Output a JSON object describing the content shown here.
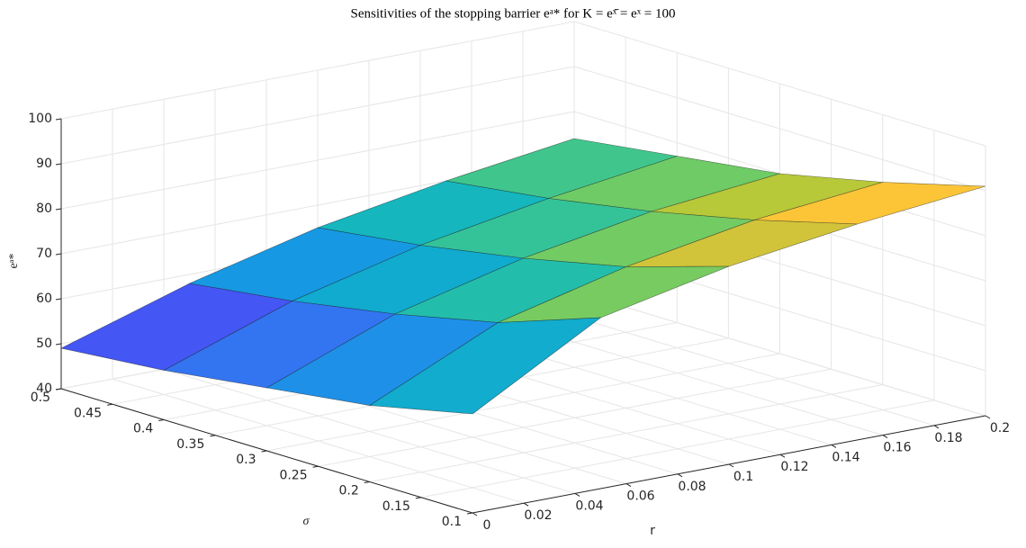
{
  "chart_data": {
    "type": "surface",
    "title": "Sensitivities of the stopping barrier eᵃ* for K = eˣ̄ = eˣ = 100",
    "xlabel": "r",
    "ylabel": "σ",
    "zlabel": "eᵃ*",
    "x": [
      0,
      0.05,
      0.1,
      0.15,
      0.2
    ],
    "y": [
      0.1,
      0.2,
      0.3,
      0.4,
      0.5
    ],
    "z": [
      [
        62,
        78,
        84,
        88,
        91
      ],
      [
        57,
        70,
        77,
        82,
        85
      ],
      [
        54,
        65,
        72,
        77,
        80
      ],
      [
        51,
        61,
        68,
        73,
        77
      ],
      [
        49,
        58,
        65,
        70,
        74
      ]
    ],
    "xlim": [
      0,
      0.2
    ],
    "xticks": [
      0,
      0.02,
      0.04,
      0.06,
      0.08,
      0.1,
      0.12,
      0.14,
      0.16,
      0.18,
      0.2
    ],
    "ylim": [
      0.1,
      0.5
    ],
    "yticks": [
      0.1,
      0.15,
      0.2,
      0.25,
      0.3,
      0.35,
      0.4,
      0.45,
      0.5
    ],
    "zlim": [
      40,
      100
    ],
    "zticks": [
      40,
      50,
      60,
      70,
      80,
      90,
      100
    ],
    "grid": true,
    "colormap": "parula"
  }
}
